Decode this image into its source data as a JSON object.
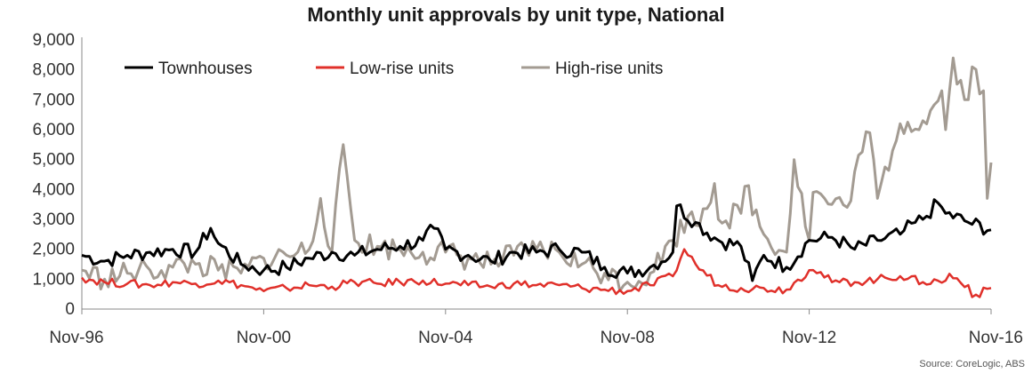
{
  "chart_data": {
    "type": "line",
    "title": "Monthly unit approvals by unit type, National",
    "source": "Source: CoreLogic, ABS",
    "xlabel": "",
    "ylabel": "",
    "ylim": [
      0,
      9000
    ],
    "yticks": [
      0,
      1000,
      2000,
      3000,
      4000,
      5000,
      6000,
      7000,
      8000,
      9000
    ],
    "ytick_labels": [
      "0",
      "1,000",
      "2,000",
      "3,000",
      "4,000",
      "5,000",
      "6,000",
      "7,000",
      "8,000",
      "9,000"
    ],
    "xlim": [
      "1996-11",
      "2016-11"
    ],
    "xticks": [
      "1996-11",
      "2000-11",
      "2004-11",
      "2008-11",
      "2012-11",
      "2016-11"
    ],
    "xtick_labels": [
      "Nov-96",
      "Nov-00",
      "Nov-04",
      "Nov-08",
      "Nov-12",
      "Nov-16"
    ],
    "grid": false,
    "legend_position": "top-left",
    "series": [
      {
        "name": "Townhouses",
        "color": "#000000",
        "x": [
          "1996-11",
          "1997-05",
          "1997-11",
          "1998-05",
          "1998-11",
          "1999-05",
          "1999-11",
          "2000-05",
          "2000-11",
          "2001-05",
          "2001-11",
          "2002-05",
          "2002-11",
          "2003-05",
          "2003-11",
          "2004-05",
          "2004-11",
          "2005-05",
          "2005-11",
          "2006-05",
          "2006-11",
          "2007-05",
          "2007-11",
          "2008-05",
          "2008-11",
          "2009-05",
          "2009-11",
          "2010-05",
          "2010-11",
          "2011-05",
          "2011-11",
          "2012-05",
          "2012-11",
          "2013-05",
          "2013-11",
          "2014-05",
          "2014-11",
          "2015-05",
          "2015-11",
          "2016-05",
          "2016-11"
        ],
        "y": [
          1800,
          1600,
          1800,
          1900,
          2000,
          1900,
          2200,
          1500,
          1300,
          1400,
          1700,
          1900,
          1800,
          2000,
          2100,
          2300,
          2000,
          1800,
          1600,
          1900,
          1900,
          2000,
          1900,
          1400,
          1200,
          1400,
          1900,
          2900,
          2300,
          2100,
          1800,
          1400,
          2300,
          2400,
          2000,
          2300,
          2500,
          3000,
          3200,
          2900,
          2650
        ]
      },
      {
        "name": "Low-rise units",
        "color": "#e0302a",
        "x": [
          "1996-11",
          "1997-05",
          "1997-11",
          "1998-05",
          "1998-11",
          "1999-05",
          "1999-11",
          "2000-05",
          "2000-11",
          "2001-05",
          "2001-11",
          "2002-05",
          "2002-11",
          "2003-05",
          "2003-11",
          "2004-05",
          "2004-11",
          "2005-05",
          "2005-11",
          "2006-05",
          "2006-11",
          "2007-05",
          "2007-11",
          "2008-05",
          "2008-11",
          "2009-05",
          "2009-11",
          "2010-05",
          "2010-11",
          "2011-05",
          "2011-11",
          "2012-05",
          "2012-11",
          "2013-05",
          "2013-11",
          "2014-05",
          "2014-11",
          "2015-05",
          "2015-11",
          "2016-05",
          "2016-11"
        ],
        "y": [
          1050,
          900,
          850,
          800,
          900,
          850,
          950,
          800,
          600,
          700,
          800,
          750,
          900,
          850,
          900,
          950,
          850,
          800,
          750,
          850,
          800,
          800,
          700,
          650,
          600,
          800,
          1100,
          1500,
          800,
          700,
          700,
          650,
          1300,
          900,
          900,
          1000,
          1100,
          900,
          950,
          800,
          700
        ]
      },
      {
        "name": "High-rise units",
        "color": "#a39b92",
        "x": [
          "1996-11",
          "1997-05",
          "1997-11",
          "1998-05",
          "1998-11",
          "1999-05",
          "1999-11",
          "2000-05",
          "2000-11",
          "2001-05",
          "2001-11",
          "2002-05",
          "2002-11",
          "2003-05",
          "2003-11",
          "2004-05",
          "2004-11",
          "2005-05",
          "2005-11",
          "2006-05",
          "2006-11",
          "2007-05",
          "2007-11",
          "2008-05",
          "2008-11",
          "2009-05",
          "2009-11",
          "2010-05",
          "2010-11",
          "2011-05",
          "2011-11",
          "2012-05",
          "2012-11",
          "2013-05",
          "2013-11",
          "2014-05",
          "2014-11",
          "2015-05",
          "2015-11",
          "2016-05",
          "2016-11"
        ],
        "y": [
          1300,
          1000,
          1200,
          1300,
          1400,
          1500,
          1300,
          1200,
          1700,
          1800,
          2000,
          1900,
          2300,
          2100,
          2000,
          1900,
          1900,
          1700,
          1500,
          1800,
          2000,
          1900,
          1500,
          1200,
          900,
          1200,
          2300,
          2800,
          3000,
          3200,
          2500,
          1900,
          2300,
          3500,
          4600,
          3700,
          6200,
          6300,
          6000,
          7000,
          4900
        ]
      }
    ],
    "spikes": [
      {
        "series": 2,
        "x": "2002-08",
        "y": 5500
      },
      {
        "series": 2,
        "x": "2002-02",
        "y": 3700
      },
      {
        "series": 2,
        "x": "2010-03",
        "y": 3100
      },
      {
        "series": 2,
        "x": "2010-10",
        "y": 4200
      },
      {
        "series": 2,
        "x": "2011-05",
        "y": 4500
      },
      {
        "series": 2,
        "x": "2012-07",
        "y": 5000
      },
      {
        "series": 2,
        "x": "2012-11",
        "y": 4000
      },
      {
        "series": 2,
        "x": "2013-09",
        "y": 3400
      },
      {
        "series": 2,
        "x": "2014-03",
        "y": 5900
      },
      {
        "series": 2,
        "x": "2014-09",
        "y": 5300
      },
      {
        "series": 2,
        "x": "2015-05",
        "y": 6100
      },
      {
        "series": 2,
        "x": "2015-10",
        "y": 7300
      },
      {
        "series": 2,
        "x": "2016-01",
        "y": 8400
      },
      {
        "series": 2,
        "x": "2016-04",
        "y": 7000
      },
      {
        "series": 2,
        "x": "2016-06",
        "y": 8100
      },
      {
        "series": 2,
        "x": "2016-09",
        "y": 7300
      },
      {
        "series": 2,
        "x": "2016-11",
        "y": 8600
      },
      {
        "series": 2,
        "x": "2016-10",
        "y": 3700
      },
      {
        "series": 0,
        "x": "1999-09",
        "y": 2700
      },
      {
        "series": 0,
        "x": "2004-08",
        "y": 2700
      },
      {
        "series": 0,
        "x": "2009-12",
        "y": 3450
      },
      {
        "series": 0,
        "x": "2015-09",
        "y": 3550
      },
      {
        "series": 0,
        "x": "2015-03",
        "y": 2900
      },
      {
        "series": 0,
        "x": "2011-08",
        "y": 950
      },
      {
        "series": 1,
        "x": "2010-02",
        "y": 2000
      },
      {
        "series": 1,
        "x": "2012-11",
        "y": 1500
      },
      {
        "series": 1,
        "x": "2015-11",
        "y": 1200
      },
      {
        "series": 1,
        "x": "2016-06",
        "y": 400
      }
    ]
  }
}
